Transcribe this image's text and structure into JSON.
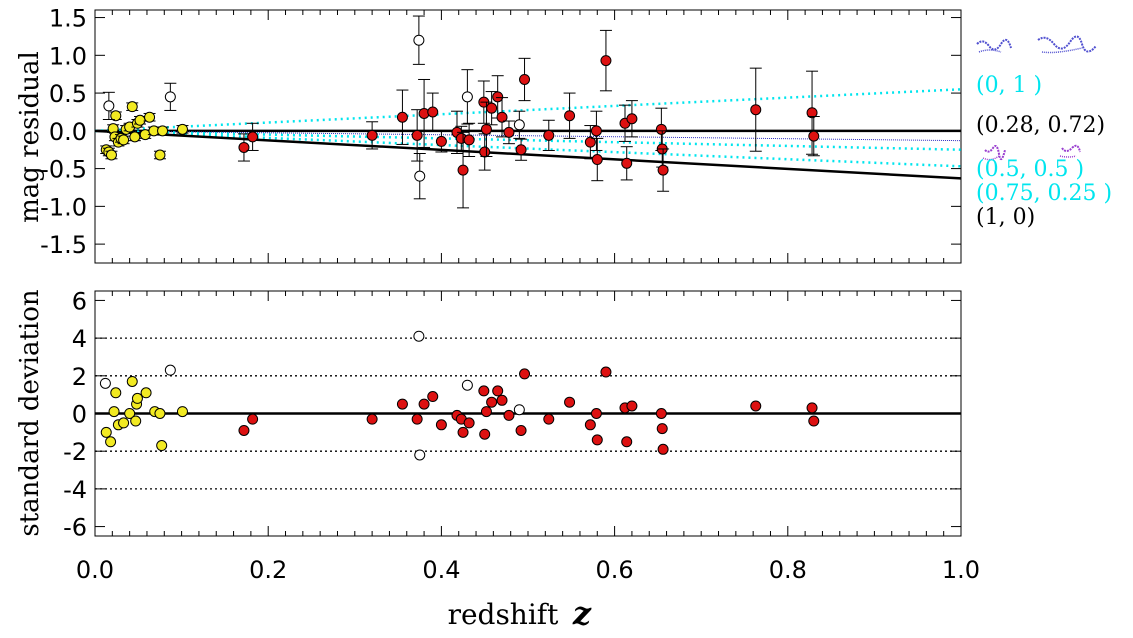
{
  "chart_data": [
    {
      "type": "scatter",
      "ylabel": "mag residual",
      "ylim": [
        -1.75,
        1.6
      ],
      "y_ticks": [
        "-1.5",
        "-1.0",
        "-0.5",
        "0.0",
        "0.5",
        "1.0",
        "1.5"
      ],
      "y_tick_values": [
        -1.5,
        -1.0,
        -0.5,
        0.0,
        0.5,
        1.0,
        1.5
      ],
      "series": [
        {
          "marker": "yellow-filled",
          "points": [
            {
              "x": 0.013,
              "y": -0.25,
              "err": 0.05
            },
            {
              "x": 0.016,
              "y": -0.28,
              "err": 0.05
            },
            {
              "x": 0.019,
              "y": -0.32,
              "err": 0.05
            },
            {
              "x": 0.021,
              "y": 0.03,
              "err": 0.05
            },
            {
              "x": 0.023,
              "y": -0.08,
              "err": 0.05
            },
            {
              "x": 0.024,
              "y": 0.2,
              "err": 0.05
            },
            {
              "x": 0.027,
              "y": -0.15,
              "err": 0.05
            },
            {
              "x": 0.03,
              "y": -0.1,
              "err": 0.05
            },
            {
              "x": 0.033,
              "y": -0.12,
              "err": 0.05
            },
            {
              "x": 0.036,
              "y": 0.02,
              "err": 0.05
            },
            {
              "x": 0.04,
              "y": 0.05,
              "err": 0.05
            },
            {
              "x": 0.043,
              "y": 0.32,
              "err": 0.05
            },
            {
              "x": 0.046,
              "y": -0.08,
              "err": 0.05
            },
            {
              "x": 0.049,
              "y": 0.1,
              "err": 0.05
            },
            {
              "x": 0.052,
              "y": 0.14,
              "err": 0.05
            },
            {
              "x": 0.058,
              "y": -0.05,
              "err": 0.05
            },
            {
              "x": 0.063,
              "y": 0.18,
              "err": 0.05
            },
            {
              "x": 0.068,
              "y": 0.0,
              "err": 0.05
            },
            {
              "x": 0.075,
              "y": -0.32,
              "err": 0.05
            },
            {
              "x": 0.078,
              "y": 0.0,
              "err": 0.05
            },
            {
              "x": 0.101,
              "y": 0.02,
              "err": 0.05
            }
          ]
        },
        {
          "marker": "red-filled",
          "points": [
            {
              "x": 0.172,
              "y": -0.22,
              "err": 0.18
            },
            {
              "x": 0.182,
              "y": -0.08,
              "err": 0.18
            },
            {
              "x": 0.32,
              "y": -0.06,
              "err": 0.18
            },
            {
              "x": 0.355,
              "y": 0.18,
              "err": 0.36
            },
            {
              "x": 0.372,
              "y": -0.06,
              "err": 0.34
            },
            {
              "x": 0.38,
              "y": 0.23,
              "err": 0.45
            },
            {
              "x": 0.39,
              "y": 0.25,
              "err": 0.25
            },
            {
              "x": 0.4,
              "y": -0.14,
              "err": 0.14
            },
            {
              "x": 0.418,
              "y": -0.02,
              "err": 0.28
            },
            {
              "x": 0.423,
              "y": -0.1,
              "err": 0.16
            },
            {
              "x": 0.425,
              "y": -0.52,
              "err": 0.5
            },
            {
              "x": 0.432,
              "y": -0.12,
              "err": 0.22
            },
            {
              "x": 0.449,
              "y": 0.38,
              "err": 0.28
            },
            {
              "x": 0.45,
              "y": -0.28,
              "err": 0.24
            },
            {
              "x": 0.452,
              "y": 0.02,
              "err": 0.36
            },
            {
              "x": 0.458,
              "y": 0.3,
              "err": 0.22
            },
            {
              "x": 0.465,
              "y": 0.45,
              "err": 0.28
            },
            {
              "x": 0.47,
              "y": 0.18,
              "err": 0.26
            },
            {
              "x": 0.478,
              "y": -0.02,
              "err": 0.15
            },
            {
              "x": 0.492,
              "y": -0.25,
              "err": 0.14
            },
            {
              "x": 0.496,
              "y": 0.68,
              "err": 0.28
            },
            {
              "x": 0.524,
              "y": -0.06,
              "err": 0.2
            },
            {
              "x": 0.548,
              "y": 0.2,
              "err": 0.3
            },
            {
              "x": 0.572,
              "y": -0.15,
              "err": 0.22
            },
            {
              "x": 0.579,
              "y": 0.0,
              "err": 0.26
            },
            {
              "x": 0.58,
              "y": -0.38,
              "err": 0.28
            },
            {
              "x": 0.59,
              "y": 0.93,
              "err": 0.4
            },
            {
              "x": 0.612,
              "y": 0.1,
              "err": 0.24
            },
            {
              "x": 0.614,
              "y": -0.43,
              "err": 0.22
            },
            {
              "x": 0.62,
              "y": 0.16,
              "err": 0.24
            },
            {
              "x": 0.654,
              "y": 0.02,
              "err": 0.28
            },
            {
              "x": 0.655,
              "y": -0.24,
              "err": 0.24
            },
            {
              "x": 0.656,
              "y": -0.52,
              "err": 0.28
            },
            {
              "x": 0.763,
              "y": 0.28,
              "err": 0.55
            },
            {
              "x": 0.828,
              "y": 0.24,
              "err": 0.55
            },
            {
              "x": 0.83,
              "y": -0.07,
              "err": 0.26
            }
          ]
        },
        {
          "marker": "open-circle",
          "points": [
            {
              "x": 0.016,
              "y": 0.33,
              "err": 0.18
            },
            {
              "x": 0.087,
              "y": 0.45,
              "err": 0.18
            },
            {
              "x": 0.374,
              "y": 1.2,
              "err": 0.32
            },
            {
              "x": 0.375,
              "y": -0.6,
              "err": 0.3
            },
            {
              "x": 0.43,
              "y": 0.45,
              "err": 0.36
            },
            {
              "x": 0.49,
              "y": 0.08,
              "err": 0.18
            }
          ]
        }
      ],
      "model_lines": [
        {
          "label": "(0,        1 )",
          "color": "#00e5ee",
          "style": "dotted",
          "y_at_z1": 0.55
        },
        {
          "label": "(0.28,   0.72)",
          "color": "#000000",
          "style": "solid",
          "y_at_z1": 0.0
        },
        {
          "label": "",
          "color": "#3030c0",
          "style": "fine",
          "y_at_z1": -0.13
        },
        {
          "label": "(0.5,      0.5 )",
          "color": "#00e5ee",
          "style": "dotted",
          "y_at_z1": -0.25
        },
        {
          "label": "(0.75,   0.25 )",
          "color": "#00e5ee",
          "style": "dotted",
          "y_at_z1": -0.47
        },
        {
          "label": "(1,         0)",
          "color": "#000000",
          "style": "solid",
          "y_at_z1": -0.63
        }
      ]
    },
    {
      "type": "scatter",
      "ylabel": "standard deviation",
      "ylim": [
        -6.5,
        6.5
      ],
      "y_ticks": [
        "-6",
        "-4",
        "-2",
        "0",
        "2",
        "4",
        "6"
      ],
      "y_tick_values": [
        -6,
        -4,
        -2,
        0,
        2,
        4,
        6
      ],
      "reference_lines": [
        -4,
        -2,
        0,
        2,
        4
      ],
      "xlabel": "redshift",
      "xlabel_symbol": "z",
      "xlim": [
        0,
        1
      ],
      "x_ticks": [
        "0.0",
        "0.2",
        "0.4",
        "0.6",
        "0.8",
        "1.0"
      ],
      "x_tick_values": [
        0,
        0.2,
        0.4,
        0.6,
        0.8,
        1.0
      ],
      "series": [
        {
          "marker": "yellow-filled",
          "points": [
            {
              "x": 0.013,
              "y": -1.0
            },
            {
              "x": 0.018,
              "y": -1.5
            },
            {
              "x": 0.022,
              "y": 0.1
            },
            {
              "x": 0.024,
              "y": 1.1
            },
            {
              "x": 0.027,
              "y": -0.6
            },
            {
              "x": 0.033,
              "y": -0.5
            },
            {
              "x": 0.04,
              "y": 0.0
            },
            {
              "x": 0.043,
              "y": 1.7
            },
            {
              "x": 0.047,
              "y": -0.4
            },
            {
              "x": 0.048,
              "y": 0.5
            },
            {
              "x": 0.049,
              "y": 0.8
            },
            {
              "x": 0.059,
              "y": 1.1
            },
            {
              "x": 0.069,
              "y": 0.1
            },
            {
              "x": 0.075,
              "y": 0.0
            },
            {
              "x": 0.077,
              "y": -1.7
            },
            {
              "x": 0.101,
              "y": 0.1
            }
          ]
        },
        {
          "marker": "red-filled",
          "points": [
            {
              "x": 0.172,
              "y": -0.9
            },
            {
              "x": 0.182,
              "y": -0.3
            },
            {
              "x": 0.32,
              "y": -0.3
            },
            {
              "x": 0.355,
              "y": 0.5
            },
            {
              "x": 0.372,
              "y": -0.3
            },
            {
              "x": 0.38,
              "y": 0.5
            },
            {
              "x": 0.39,
              "y": 0.9
            },
            {
              "x": 0.4,
              "y": -0.6
            },
            {
              "x": 0.418,
              "y": -0.1
            },
            {
              "x": 0.423,
              "y": -0.3
            },
            {
              "x": 0.425,
              "y": -1.0
            },
            {
              "x": 0.432,
              "y": -0.5
            },
            {
              "x": 0.449,
              "y": 1.2
            },
            {
              "x": 0.45,
              "y": -1.1
            },
            {
              "x": 0.452,
              "y": 0.1
            },
            {
              "x": 0.458,
              "y": 0.6
            },
            {
              "x": 0.465,
              "y": 1.2
            },
            {
              "x": 0.47,
              "y": 0.7
            },
            {
              "x": 0.478,
              "y": -0.1
            },
            {
              "x": 0.492,
              "y": -0.9
            },
            {
              "x": 0.496,
              "y": 2.1
            },
            {
              "x": 0.524,
              "y": -0.3
            },
            {
              "x": 0.548,
              "y": 0.6
            },
            {
              "x": 0.572,
              "y": -0.6
            },
            {
              "x": 0.579,
              "y": 0.0
            },
            {
              "x": 0.58,
              "y": -1.4
            },
            {
              "x": 0.59,
              "y": 2.2
            },
            {
              "x": 0.612,
              "y": 0.3
            },
            {
              "x": 0.614,
              "y": -1.5
            },
            {
              "x": 0.62,
              "y": 0.4
            },
            {
              "x": 0.654,
              "y": 0.0
            },
            {
              "x": 0.655,
              "y": -0.8
            },
            {
              "x": 0.656,
              "y": -1.9
            },
            {
              "x": 0.763,
              "y": 0.4
            },
            {
              "x": 0.828,
              "y": 0.3
            },
            {
              "x": 0.83,
              "y": -0.4
            }
          ]
        },
        {
          "marker": "open-circle",
          "points": [
            {
              "x": 0.012,
              "y": 1.6
            },
            {
              "x": 0.087,
              "y": 2.3
            },
            {
              "x": 0.374,
              "y": 4.1
            },
            {
              "x": 0.375,
              "y": -2.2
            },
            {
              "x": 0.43,
              "y": 1.5
            },
            {
              "x": 0.49,
              "y": 0.2
            }
          ]
        }
      ]
    }
  ],
  "colors": {
    "yellow_fill": "#f2ea22",
    "red_fill": "#dd1111",
    "cyan": "#00e5ee",
    "blue": "#3030c0",
    "purple": "#9a40d0"
  }
}
